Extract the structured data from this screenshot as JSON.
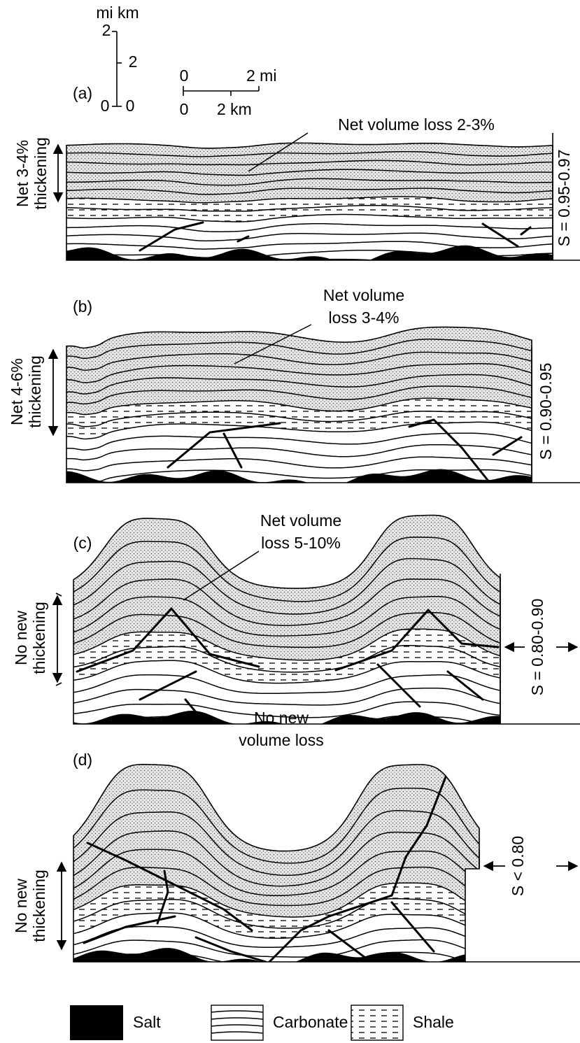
{
  "scale": {
    "vertical": {
      "units": "mi km",
      "mi_top": "2",
      "km_mid": "2",
      "mi_zero": "0",
      "km_zero": "0"
    },
    "horizontal": {
      "mi_zero": "0",
      "mi_label": "2 mi",
      "km_zero": "0",
      "km_label": "2 km"
    }
  },
  "panels": [
    {
      "label": "(a)",
      "annotation": [
        "Net volume loss 2-3%"
      ],
      "thickening": [
        "Net 3-4%",
        "thickening"
      ],
      "ratio": "S = 0.95-0.97"
    },
    {
      "label": "(b)",
      "annotation": [
        "Net volume",
        "loss 3-4%"
      ],
      "thickening": [
        "Net 4-6%",
        "thickening"
      ],
      "ratio": "S = 0.90-0.95"
    },
    {
      "label": "(c)",
      "annotation": [
        "Net volume",
        "loss 5-10%"
      ],
      "thickening": [
        "No new",
        "thickening"
      ],
      "ratio": "S = 0.80-0.90"
    },
    {
      "label": "(d)",
      "annotation": [
        "No new",
        "volume loss"
      ],
      "thickening": [
        "No new",
        "thickening"
      ],
      "ratio": "S < 0.80"
    }
  ],
  "legend": [
    {
      "label": "Salt"
    },
    {
      "label": "Carbonate"
    },
    {
      "label": "Shale"
    }
  ]
}
